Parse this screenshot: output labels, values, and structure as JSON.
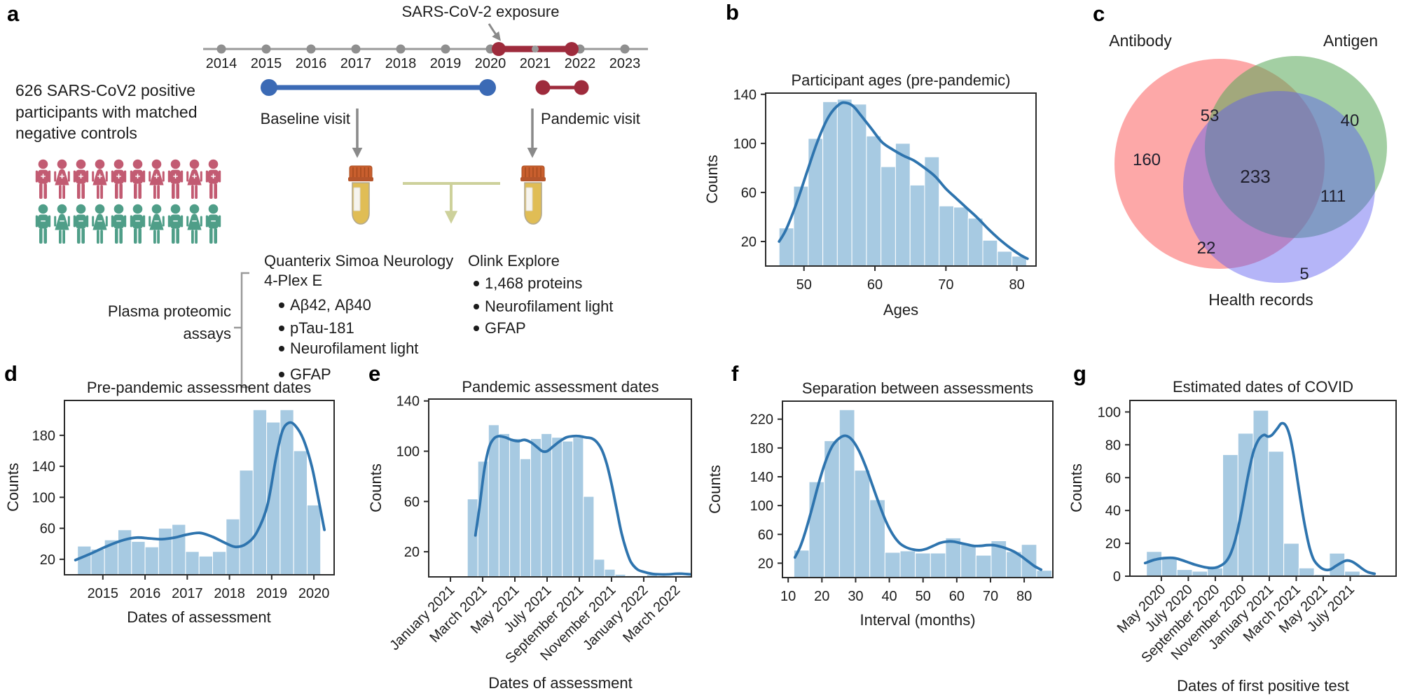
{
  "colors": {
    "bar_fill": "#a7cae2",
    "kde_line": "#2e74ae",
    "axis": "#2b2b2b",
    "text": "#1c1c1c",
    "timeline_gray": "#9a9a9a",
    "dot_gray": "#8f8f8f",
    "accent_red": "#9e2b3c",
    "accent_blue": "#3b6ab5",
    "arrow_gray": "#8a8a8a",
    "pale_olive": "#cdd19b",
    "person_positive": "#c25b72",
    "person_negative": "#4f9e88",
    "tube_cap": "#c95f2e",
    "tube_liquid": "#e0bd55",
    "venn_antibody": "#fb7373",
    "venn_antigen": "#57a757",
    "venn_health": "#5a5af0"
  },
  "panel_a": {
    "label": "a",
    "exposure_label": "SARS-CoV-2 exposure",
    "timeline_years": [
      "2014",
      "2015",
      "2016",
      "2017",
      "2018",
      "2019",
      "2020",
      "2021",
      "2022",
      "2023"
    ],
    "participants_text_lines": [
      "626 SARS-CoV2 positive",
      "participants with matched",
      "negative controls"
    ],
    "participant_rows": [
      {
        "sign": "+",
        "count": 10,
        "color": "#c25b72"
      },
      {
        "sign": "−",
        "count": 10,
        "color": "#4f9e88"
      }
    ],
    "baseline_label": "Baseline visit",
    "pandemic_label": "Pandemic visit",
    "plasma_label_lines": [
      "Plasma proteomic",
      "assays"
    ],
    "assay_quanterix": {
      "title_lines": [
        "Quanterix Simoa Neurology",
        "4-Plex E"
      ],
      "items": [
        "Aβ42, Aβ40",
        "pTau-181",
        "Neurofilament light",
        "GFAP"
      ]
    },
    "assay_olink": {
      "title": "Olink Explore",
      "items": [
        "1,468 proteins",
        "Neurofilament light",
        "GFAP"
      ]
    }
  },
  "panel_c": {
    "label": "c",
    "set_labels": [
      "Antibody",
      "Antigen",
      "Health records"
    ],
    "regions": {
      "antibody_only": 160,
      "antibody_antigen": 53,
      "antigen_only": 40,
      "all_three": 233,
      "antigen_health": 111,
      "antibody_health": 22,
      "health_only": 5
    }
  },
  "chart_data": [
    {
      "id": "b",
      "panel_label": "b",
      "type": "bar",
      "title": "Participant ages (pre-pandemic)",
      "xlabel": "Ages",
      "ylabel": "Counts",
      "ylim": [
        0,
        141
      ],
      "yticks": [
        20,
        60,
        100,
        140
      ],
      "xlim": [
        44.6,
        82.7
      ],
      "xticks": {
        "values": [
          50,
          60,
          70,
          80
        ],
        "labels": [
          "50",
          "60",
          "70",
          "80"
        ],
        "rotated": false
      },
      "bars": {
        "start": 46.5,
        "bin_width": 2.05,
        "values": [
          31,
          65,
          104,
          134,
          136,
          132,
          106,
          81,
          100,
          66,
          89,
          49,
          48,
          39,
          21,
          12,
          8
        ]
      },
      "kde": [
        [
          46.5,
          20
        ],
        [
          47.5,
          30
        ],
        [
          49,
          52
        ],
        [
          50.5,
          78
        ],
        [
          52,
          103
        ],
        [
          53.5,
          122
        ],
        [
          55,
          132
        ],
        [
          56,
          133
        ],
        [
          57,
          130
        ],
        [
          58,
          123
        ],
        [
          59.5,
          112
        ],
        [
          61,
          101
        ],
        [
          62.5,
          95
        ],
        [
          64,
          90
        ],
        [
          65.5,
          86
        ],
        [
          67,
          80
        ],
        [
          68.5,
          73
        ],
        [
          70,
          63
        ],
        [
          71.5,
          55
        ],
        [
          73,
          47
        ],
        [
          74.5,
          39
        ],
        [
          76,
          30
        ],
        [
          77.5,
          22
        ],
        [
          79,
          15
        ],
        [
          80.5,
          9
        ],
        [
          81.5,
          6
        ]
      ]
    },
    {
      "id": "d",
      "panel_label": "d",
      "type": "bar",
      "title": "Pre-pandemic assessment dates",
      "xlabel": "Dates of assessment",
      "ylabel": "Counts",
      "ylim": [
        0,
        225
      ],
      "yticks": [
        20,
        60,
        100,
        140,
        180
      ],
      "xlim": [
        2014.09,
        2020.48
      ],
      "xticks": {
        "values": [
          2015,
          2016,
          2017,
          2018,
          2019,
          2020
        ],
        "labels": [
          "2015",
          "2016",
          "2017",
          "2018",
          "2019",
          "2020"
        ],
        "rotated": false
      },
      "bars": {
        "start": 2014.4,
        "bin_width": 0.32,
        "values": [
          37,
          33,
          45,
          58,
          43,
          36,
          60,
          65,
          30,
          24,
          30,
          72,
          135,
          213,
          197,
          213,
          160,
          90
        ]
      },
      "kde": [
        [
          2014.35,
          19
        ],
        [
          2014.7,
          27
        ],
        [
          2015.1,
          37
        ],
        [
          2015.5,
          45
        ],
        [
          2015.8,
          48
        ],
        [
          2016.1,
          47
        ],
        [
          2016.4,
          46
        ],
        [
          2016.7,
          48
        ],
        [
          2017.0,
          52
        ],
        [
          2017.3,
          54
        ],
        [
          2017.6,
          49
        ],
        [
          2017.9,
          41
        ],
        [
          2018.15,
          36
        ],
        [
          2018.4,
          40
        ],
        [
          2018.65,
          55
        ],
        [
          2018.9,
          90
        ],
        [
          2019.1,
          150
        ],
        [
          2019.25,
          185
        ],
        [
          2019.4,
          196
        ],
        [
          2019.55,
          193
        ],
        [
          2019.75,
          175
        ],
        [
          2019.95,
          140
        ],
        [
          2020.1,
          100
        ],
        [
          2020.25,
          58
        ]
      ]
    },
    {
      "id": "e",
      "panel_label": "e",
      "type": "bar",
      "title": "Pandemic assessment dates",
      "xlabel": "Dates of assessment",
      "ylabel": "Counts",
      "ylim": [
        0,
        141.5
      ],
      "yticks": [
        20,
        60,
        100,
        140
      ],
      "xlim": [
        -1.35,
        14.96
      ],
      "xticks": {
        "values": [
          0,
          2,
          4,
          6,
          8,
          10,
          12,
          14
        ],
        "labels": [
          "January 2021",
          "March 2021",
          "May 2021",
          "July 2021",
          "September 2021",
          "November 2021",
          "January 2022",
          "March 2022"
        ],
        "rotated": true
      },
      "bars": {
        "start": 1.05,
        "bin_width": 0.655,
        "values": [
          62,
          92,
          121,
          114,
          110,
          94,
          110,
          114,
          111,
          108,
          111,
          64,
          14,
          6,
          2,
          1,
          1,
          2
        ]
      },
      "kde": [
        [
          1.55,
          33
        ],
        [
          1.8,
          55
        ],
        [
          2.1,
          85
        ],
        [
          2.4,
          103
        ],
        [
          2.7,
          110
        ],
        [
          3.0,
          112
        ],
        [
          3.4,
          111
        ],
        [
          3.8,
          109
        ],
        [
          4.2,
          108
        ],
        [
          4.6,
          109
        ],
        [
          5.0,
          107
        ],
        [
          5.4,
          103
        ],
        [
          5.7,
          100
        ],
        [
          6.0,
          100
        ],
        [
          6.4,
          104
        ],
        [
          6.8,
          108
        ],
        [
          7.2,
          111
        ],
        [
          7.6,
          112
        ],
        [
          8.0,
          112
        ],
        [
          8.4,
          111
        ],
        [
          8.8,
          110
        ],
        [
          9.1,
          107
        ],
        [
          9.4,
          101
        ],
        [
          9.7,
          90
        ],
        [
          10.0,
          74
        ],
        [
          10.3,
          55
        ],
        [
          10.6,
          36
        ],
        [
          10.9,
          22
        ],
        [
          11.2,
          12
        ],
        [
          11.6,
          6
        ],
        [
          12.0,
          4
        ],
        [
          12.5,
          2.5
        ],
        [
          13.0,
          2
        ],
        [
          13.5,
          2
        ],
        [
          14.0,
          2.5
        ],
        [
          14.4,
          2.5
        ],
        [
          14.9,
          2
        ]
      ]
    },
    {
      "id": "f",
      "panel_label": "f",
      "type": "bar",
      "title": "Separation between assessments",
      "xlabel": "Interval (months)",
      "ylabel": "Counts",
      "ylim": [
        0,
        245
      ],
      "yticks": [
        20,
        60,
        100,
        140,
        180,
        220
      ],
      "xlim": [
        8.3,
        88.5
      ],
      "xticks": {
        "values": [
          10,
          20,
          30,
          40,
          50,
          60,
          70,
          80
        ],
        "labels": [
          "10",
          "20",
          "30",
          "40",
          "50",
          "60",
          "70",
          "80"
        ],
        "rotated": false
      },
      "bars": {
        "start": 11.7,
        "bin_width": 4.5,
        "values": [
          38,
          133,
          190,
          233,
          149,
          108,
          35,
          37,
          34,
          34,
          55,
          46,
          31,
          51,
          36,
          46,
          10
        ]
      },
      "kde": [
        [
          12,
          28
        ],
        [
          13.5,
          42
        ],
        [
          15,
          62
        ],
        [
          17,
          95
        ],
        [
          19,
          130
        ],
        [
          21,
          160
        ],
        [
          23,
          182
        ],
        [
          25,
          193
        ],
        [
          27,
          197
        ],
        [
          29,
          191
        ],
        [
          31,
          176
        ],
        [
          33,
          154
        ],
        [
          35,
          128
        ],
        [
          37,
          102
        ],
        [
          39,
          78
        ],
        [
          41,
          60
        ],
        [
          43,
          48
        ],
        [
          45,
          42
        ],
        [
          47,
          39
        ],
        [
          49,
          38
        ],
        [
          51,
          40
        ],
        [
          53,
          44
        ],
        [
          55,
          48
        ],
        [
          57,
          50
        ],
        [
          59,
          50
        ],
        [
          61,
          48
        ],
        [
          63,
          46
        ],
        [
          65,
          44
        ],
        [
          67,
          44
        ],
        [
          69,
          45
        ],
        [
          71,
          45
        ],
        [
          73,
          43
        ],
        [
          75,
          40
        ],
        [
          77,
          36
        ],
        [
          79,
          30
        ],
        [
          81,
          23
        ],
        [
          83,
          16
        ],
        [
          85,
          11
        ]
      ]
    },
    {
      "id": "g",
      "panel_label": "g",
      "type": "bar",
      "title": "Estimated dates of COVID",
      "xlabel": "Dates of first positive test",
      "ylabel": "Counts",
      "ylim": [
        0,
        107
      ],
      "yticks": [
        0,
        20,
        40,
        60,
        80,
        100
      ],
      "xlim": [
        -0.33,
        19.4
      ],
      "xticks": {
        "values": [
          2,
          4,
          6,
          8,
          10,
          12,
          14,
          16
        ],
        "labels": [
          "May 2020",
          "July 2020",
          "September 2020",
          "November 2020",
          "January 2021",
          "March 2021",
          "May 2021",
          "July 2021"
        ],
        "rotated": true
      },
      "bars": {
        "start": 0.9,
        "bin_width": 1.13,
        "values": [
          15,
          11,
          4,
          3,
          5,
          74,
          87,
          101,
          76,
          20,
          5,
          1,
          14,
          3,
          1
        ]
      },
      "kde": [
        [
          0.8,
          8
        ],
        [
          1.5,
          10
        ],
        [
          2.2,
          11
        ],
        [
          3.0,
          11
        ],
        [
          3.8,
          9
        ],
        [
          4.5,
          7
        ],
        [
          5.2,
          5.5
        ],
        [
          5.8,
          5
        ],
        [
          6.3,
          6
        ],
        [
          6.8,
          9
        ],
        [
          7.2,
          15
        ],
        [
          7.6,
          26
        ],
        [
          8.0,
          42
        ],
        [
          8.4,
          60
        ],
        [
          8.8,
          75
        ],
        [
          9.2,
          83
        ],
        [
          9.6,
          86
        ],
        [
          9.9,
          85
        ],
        [
          10.2,
          86
        ],
        [
          10.6,
          90
        ],
        [
          10.9,
          93
        ],
        [
          11.2,
          92
        ],
        [
          11.5,
          86
        ],
        [
          11.8,
          74
        ],
        [
          12.1,
          58
        ],
        [
          12.4,
          42
        ],
        [
          12.7,
          28
        ],
        [
          13.0,
          17
        ],
        [
          13.3,
          10
        ],
        [
          13.7,
          6
        ],
        [
          14.1,
          4
        ],
        [
          14.5,
          4
        ],
        [
          14.9,
          6
        ],
        [
          15.3,
          8
        ],
        [
          15.7,
          9.5
        ],
        [
          16.1,
          9
        ],
        [
          16.5,
          7
        ],
        [
          16.9,
          4.5
        ],
        [
          17.3,
          2.5
        ],
        [
          17.8,
          1.5
        ]
      ]
    }
  ]
}
